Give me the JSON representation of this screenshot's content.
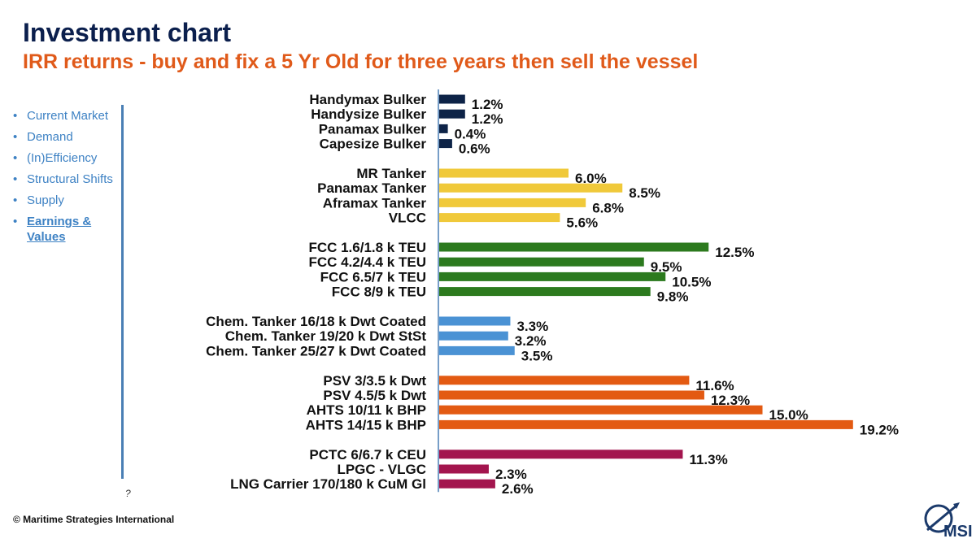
{
  "header": {
    "title": "Investment chart",
    "subtitle": "IRR returns - buy and fix a 5 Yr Old for three years then sell the vessel"
  },
  "sidebar": {
    "items": [
      {
        "label": "Current Market",
        "active": false
      },
      {
        "label": "Demand",
        "active": false
      },
      {
        "label": "(In)Efficiency",
        "active": false
      },
      {
        "label": "Structural Shifts",
        "active": false
      },
      {
        "label": "Supply",
        "active": false
      },
      {
        "label": "Earnings & Values",
        "active": true
      }
    ]
  },
  "footer": {
    "copyright": "© Maritime Strategies International",
    "mark": "?"
  },
  "logo": {
    "text": "MSI"
  },
  "chart_data": {
    "type": "bar",
    "orientation": "horizontal",
    "grid": false,
    "xlim": [
      0,
      20
    ],
    "colors": {
      "bulker": "#0d2347",
      "tanker": "#f0c93a",
      "container": "#2c7a1e",
      "chemical": "#4a92d4",
      "offshore": "#e35a12",
      "gas": "#a3154e"
    },
    "groups": [
      {
        "key": "bulker",
        "items": [
          {
            "label": "Handymax Bulker",
            "value": 1.2,
            "text": "1.2%"
          },
          {
            "label": "Handysize Bulker",
            "value": 1.2,
            "text": "1.2%"
          },
          {
            "label": "Panamax Bulker",
            "value": 0.4,
            "text": "0.4%"
          },
          {
            "label": "Capesize Bulker",
            "value": 0.6,
            "text": "0.6%"
          }
        ]
      },
      {
        "key": "tanker",
        "items": [
          {
            "label": "MR Tanker",
            "value": 6.0,
            "text": "6.0%"
          },
          {
            "label": "Panamax Tanker",
            "value": 8.5,
            "text": "8.5%"
          },
          {
            "label": "Aframax Tanker",
            "value": 6.8,
            "text": "6.8%"
          },
          {
            "label": "VLCC",
            "value": 5.6,
            "text": "5.6%"
          }
        ]
      },
      {
        "key": "container",
        "items": [
          {
            "label": "FCC 1.6/1.8 k TEU",
            "value": 12.5,
            "text": "12.5%"
          },
          {
            "label": "FCC 4.2/4.4 k TEU",
            "value": 9.5,
            "text": "9.5%"
          },
          {
            "label": "FCC 6.5/7 k TEU",
            "value": 10.5,
            "text": "10.5%"
          },
          {
            "label": "FCC 8/9 k TEU",
            "value": 9.8,
            "text": "9.8%"
          }
        ]
      },
      {
        "key": "chemical",
        "items": [
          {
            "label": "Chem. Tanker 16/18 k Dwt Coated",
            "value": 3.3,
            "text": "3.3%"
          },
          {
            "label": "Chem. Tanker 19/20 k Dwt StSt",
            "value": 3.2,
            "text": "3.2%"
          },
          {
            "label": "Chem. Tanker 25/27 k Dwt Coated",
            "value": 3.5,
            "text": "3.5%"
          }
        ]
      },
      {
        "key": "offshore",
        "items": [
          {
            "label": "PSV 3/3.5 k Dwt",
            "value": 11.6,
            "text": "11.6%"
          },
          {
            "label": "PSV 4.5/5 k Dwt",
            "value": 12.3,
            "text": "12.3%"
          },
          {
            "label": "AHTS 10/11 k BHP",
            "value": 15.0,
            "text": "15.0%"
          },
          {
            "label": "AHTS 14/15 k BHP",
            "value": 19.2,
            "text": "19.2%"
          }
        ]
      },
      {
        "key": "gas",
        "items": [
          {
            "label": "PCTC 6/6.7 k CEU",
            "value": 11.3,
            "text": "11.3%"
          },
          {
            "label": "LPGC - VLGC",
            "value": 2.3,
            "text": "2.3%"
          },
          {
            "label": "LNG Carrier 170/180 k CuM Gl",
            "value": 2.6,
            "text": "2.6%"
          }
        ]
      }
    ]
  }
}
